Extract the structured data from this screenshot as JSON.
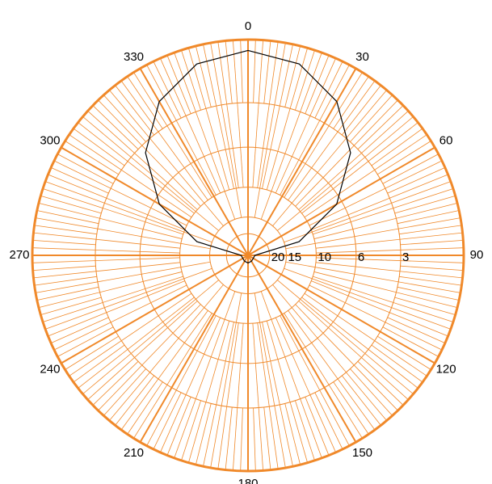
{
  "chart_data": {
    "type": "polar",
    "radial_scale": "field-db",
    "rticks": [
      3,
      6,
      10,
      15,
      20
    ],
    "angle_ticks": [
      0,
      30,
      60,
      90,
      120,
      150,
      180,
      210,
      240,
      270,
      300,
      330
    ],
    "grid_color": "#f0892a",
    "series": [
      {
        "color": "#000000",
        "angles": [
          0,
          15,
          30,
          45,
          60,
          75,
          90,
          120,
          150,
          180,
          210,
          240,
          270,
          285,
          300,
          315,
          330,
          345,
          360
        ],
        "values": [
          0.45,
          0.74,
          1.69,
          3.45,
          6.47,
          12.2,
          30,
          31,
          30,
          29,
          30,
          31,
          30,
          12.2,
          6.47,
          3.45,
          1.69,
          0.74,
          0.45
        ]
      }
    ]
  }
}
